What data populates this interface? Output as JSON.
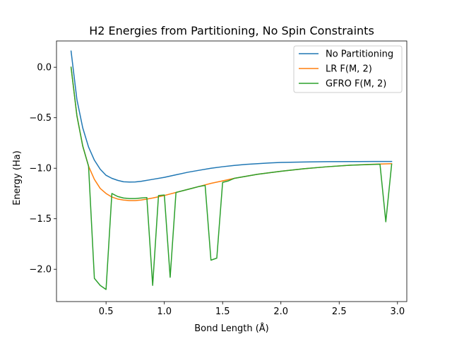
{
  "chart_data": {
    "type": "line",
    "title": "H2 Energies from Partitioning, No Spin Constraints",
    "xlabel": "Bond Length (Å)",
    "ylabel": "Energy (Ha)",
    "xlim": [
      0.075,
      3.08
    ],
    "ylim": [
      -2.32,
      0.26
    ],
    "xticks": [
      0.5,
      1.0,
      1.5,
      2.0,
      2.5,
      3.0
    ],
    "xtick_labels": [
      "0.5",
      "1.0",
      "1.5",
      "2.0",
      "2.5",
      "3.0"
    ],
    "yticks": [
      0.0,
      -0.5,
      -1.0,
      -1.5,
      -2.0
    ],
    "ytick_labels": [
      "0.0",
      "−0.5",
      "−1.0",
      "−1.5",
      "−2.0"
    ],
    "grid": false,
    "legend_position": "top-right",
    "series": [
      {
        "name": "No Partitioning",
        "color": "#1f77b4",
        "x": [
          0.2,
          0.25,
          0.3,
          0.35,
          0.4,
          0.45,
          0.5,
          0.55,
          0.6,
          0.65,
          0.7,
          0.75,
          0.8,
          0.9,
          1.0,
          1.1,
          1.2,
          1.3,
          1.4,
          1.5,
          1.6,
          1.7,
          1.8,
          1.9,
          2.0,
          2.2,
          2.4,
          2.6,
          2.8,
          2.95
        ],
        "values": [
          0.16,
          -0.32,
          -0.6,
          -0.79,
          -0.92,
          -1.01,
          -1.07,
          -1.1,
          -1.12,
          -1.134,
          -1.137,
          -1.136,
          -1.13,
          -1.11,
          -1.09,
          -1.065,
          -1.04,
          -1.02,
          -1.0,
          -0.985,
          -0.972,
          -0.962,
          -0.955,
          -0.948,
          -0.943,
          -0.938,
          -0.935,
          -0.934,
          -0.933,
          -0.933
        ]
      },
      {
        "name": "LR F(M, 2)",
        "color": "#ff7f0e",
        "x": [
          0.2,
          0.25,
          0.3,
          0.35,
          0.4,
          0.45,
          0.5,
          0.55,
          0.6,
          0.65,
          0.7,
          0.75,
          0.8,
          0.85,
          0.9,
          1.0,
          1.1,
          1.2,
          1.3,
          1.4,
          1.5,
          1.6,
          1.7,
          1.8,
          1.9,
          2.0,
          2.2,
          2.4,
          2.6,
          2.8,
          2.95
        ],
        "values": [
          0.0,
          -0.48,
          -0.78,
          -0.98,
          -1.11,
          -1.2,
          -1.25,
          -1.285,
          -1.305,
          -1.315,
          -1.32,
          -1.32,
          -1.315,
          -1.305,
          -1.295,
          -1.27,
          -1.24,
          -1.21,
          -1.18,
          -1.15,
          -1.125,
          -1.1,
          -1.08,
          -1.06,
          -1.045,
          -1.03,
          -1.005,
          -0.985,
          -0.97,
          -0.96,
          -0.955
        ]
      },
      {
        "name": "GFRO F(M, 2)",
        "color": "#2ca02c",
        "x": [
          0.2,
          0.25,
          0.3,
          0.35,
          0.4,
          0.45,
          0.5,
          0.55,
          0.6,
          0.65,
          0.7,
          0.75,
          0.8,
          0.85,
          0.9,
          0.95,
          1.0,
          1.05,
          1.1,
          1.15,
          1.2,
          1.25,
          1.3,
          1.35,
          1.4,
          1.45,
          1.5,
          1.55,
          1.6,
          1.7,
          1.8,
          1.9,
          2.0,
          2.2,
          2.4,
          2.6,
          2.85,
          2.9,
          2.95
        ],
        "values": [
          0.0,
          -0.48,
          -0.78,
          -0.98,
          -2.09,
          -2.16,
          -2.2,
          -1.25,
          -1.28,
          -1.295,
          -1.3,
          -1.3,
          -1.295,
          -1.29,
          -2.16,
          -1.27,
          -1.265,
          -2.08,
          -1.24,
          -1.225,
          -1.21,
          -1.195,
          -1.18,
          -1.17,
          -1.91,
          -1.89,
          -1.14,
          -1.125,
          -1.1,
          -1.08,
          -1.06,
          -1.045,
          -1.03,
          -1.005,
          -0.985,
          -0.97,
          -0.96,
          -1.53,
          -0.96
        ]
      }
    ]
  }
}
